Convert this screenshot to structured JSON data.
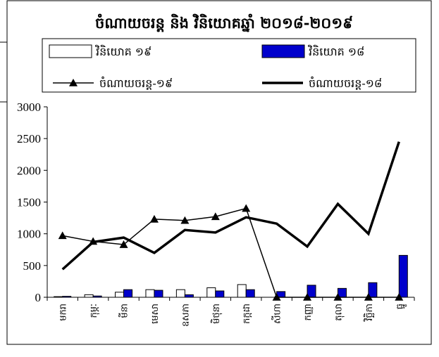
{
  "chart_data": {
    "type": "bar-line",
    "title": "ចំណាយចរន្ត និង វិនិយោគឆ្នាំ ២០១៨-២០១៩",
    "categories": [
      "មករា",
      "កុម្ភៈ",
      "មីនា",
      "មេសា",
      "ឧសភា",
      "មិថុនា",
      "កក្កដា",
      "សីហា",
      "កញ្ញា",
      "តុលា",
      "វិច្ឆិកា",
      "ធ្នូ"
    ],
    "series": [
      {
        "name": "វិនិយោគ ១៩",
        "type": "bar",
        "color": "#ffffff",
        "values": [
          10,
          40,
          80,
          120,
          120,
          150,
          200,
          null,
          null,
          null,
          null,
          null
        ]
      },
      {
        "name": "វិនិយោគ ១៨",
        "type": "bar",
        "color": "#0000cc",
        "values": [
          15,
          20,
          120,
          110,
          40,
          100,
          120,
          90,
          190,
          140,
          230,
          660
        ]
      },
      {
        "name": "ចំណាយចរន្ត-១៩",
        "type": "line",
        "color": "#000000",
        "marker": "triangle",
        "values": [
          970,
          880,
          830,
          1230,
          1210,
          1270,
          1400,
          0,
          0,
          0,
          0,
          0
        ]
      },
      {
        "name": "ចំណាយចរន្ត-១៨",
        "type": "line",
        "color": "#000000",
        "values": [
          440,
          870,
          940,
          700,
          1060,
          1020,
          1260,
          1160,
          800,
          1470,
          1000,
          2450
        ]
      }
    ],
    "ylim": [
      0,
      3000
    ],
    "yticks": [
      0,
      500,
      1000,
      1500,
      2000,
      2500,
      3000
    ],
    "grid": false
  }
}
